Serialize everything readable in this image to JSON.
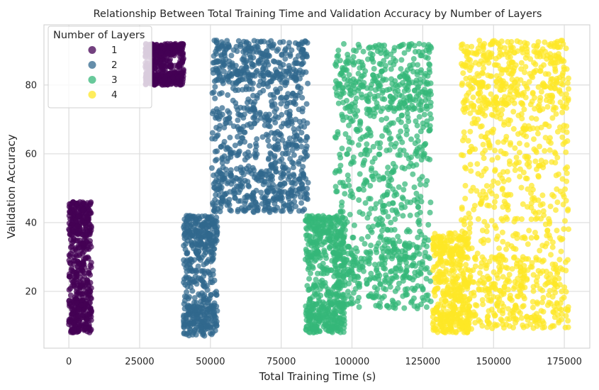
{
  "chart_data": {
    "type": "scatter",
    "title": "Relationship Between Total Training Time and Validation Accuracy by Number of Layers",
    "xlabel": "Total Training Time (s)",
    "ylabel": "Validation Accuracy",
    "xlim": [
      -8800,
      184000
    ],
    "ylim": [
      3.5,
      97.5
    ],
    "x_ticks": [
      0,
      25000,
      50000,
      75000,
      100000,
      125000,
      150000,
      175000
    ],
    "y_ticks": [
      20,
      40,
      60,
      80
    ],
    "grid": true,
    "legend": {
      "title": "Number of Layers",
      "placement": "top-left",
      "entries": [
        "1",
        "2",
        "3",
        "4"
      ]
    },
    "series": [
      {
        "name": "1",
        "color": "#440154",
        "clusters": [
          {
            "x_range": [
              0,
              8000
            ],
            "y_range": [
              8,
              46
            ],
            "count": 520
          },
          {
            "x_range": [
              27000,
              40500
            ],
            "y_range": [
              80,
              92
            ],
            "count": 500
          }
        ]
      },
      {
        "name": "2",
        "color": "#31688e",
        "clusters": [
          {
            "x_range": [
              40500,
              52500
            ],
            "y_range": [
              7,
              42
            ],
            "count": 480
          },
          {
            "x_range": [
              50500,
              84500
            ],
            "y_range": [
              43,
              93
            ],
            "count": 950
          }
        ]
      },
      {
        "name": "3",
        "color": "#35b779",
        "clusters": [
          {
            "x_range": [
              83500,
              97500
            ],
            "y_range": [
              8,
              42
            ],
            "count": 520
          },
          {
            "x_range": [
              94000,
              128000
            ],
            "y_range": [
              15,
              92
            ],
            "count": 1000
          }
        ]
      },
      {
        "name": "4",
        "color": "#fde725",
        "clusters": [
          {
            "x_range": [
              128500,
              141500
            ],
            "y_range": [
              8,
              37
            ],
            "count": 420
          },
          {
            "x_range": [
              138500,
              176500
            ],
            "y_range": [
              9,
              93
            ],
            "count": 1100
          }
        ]
      }
    ]
  }
}
